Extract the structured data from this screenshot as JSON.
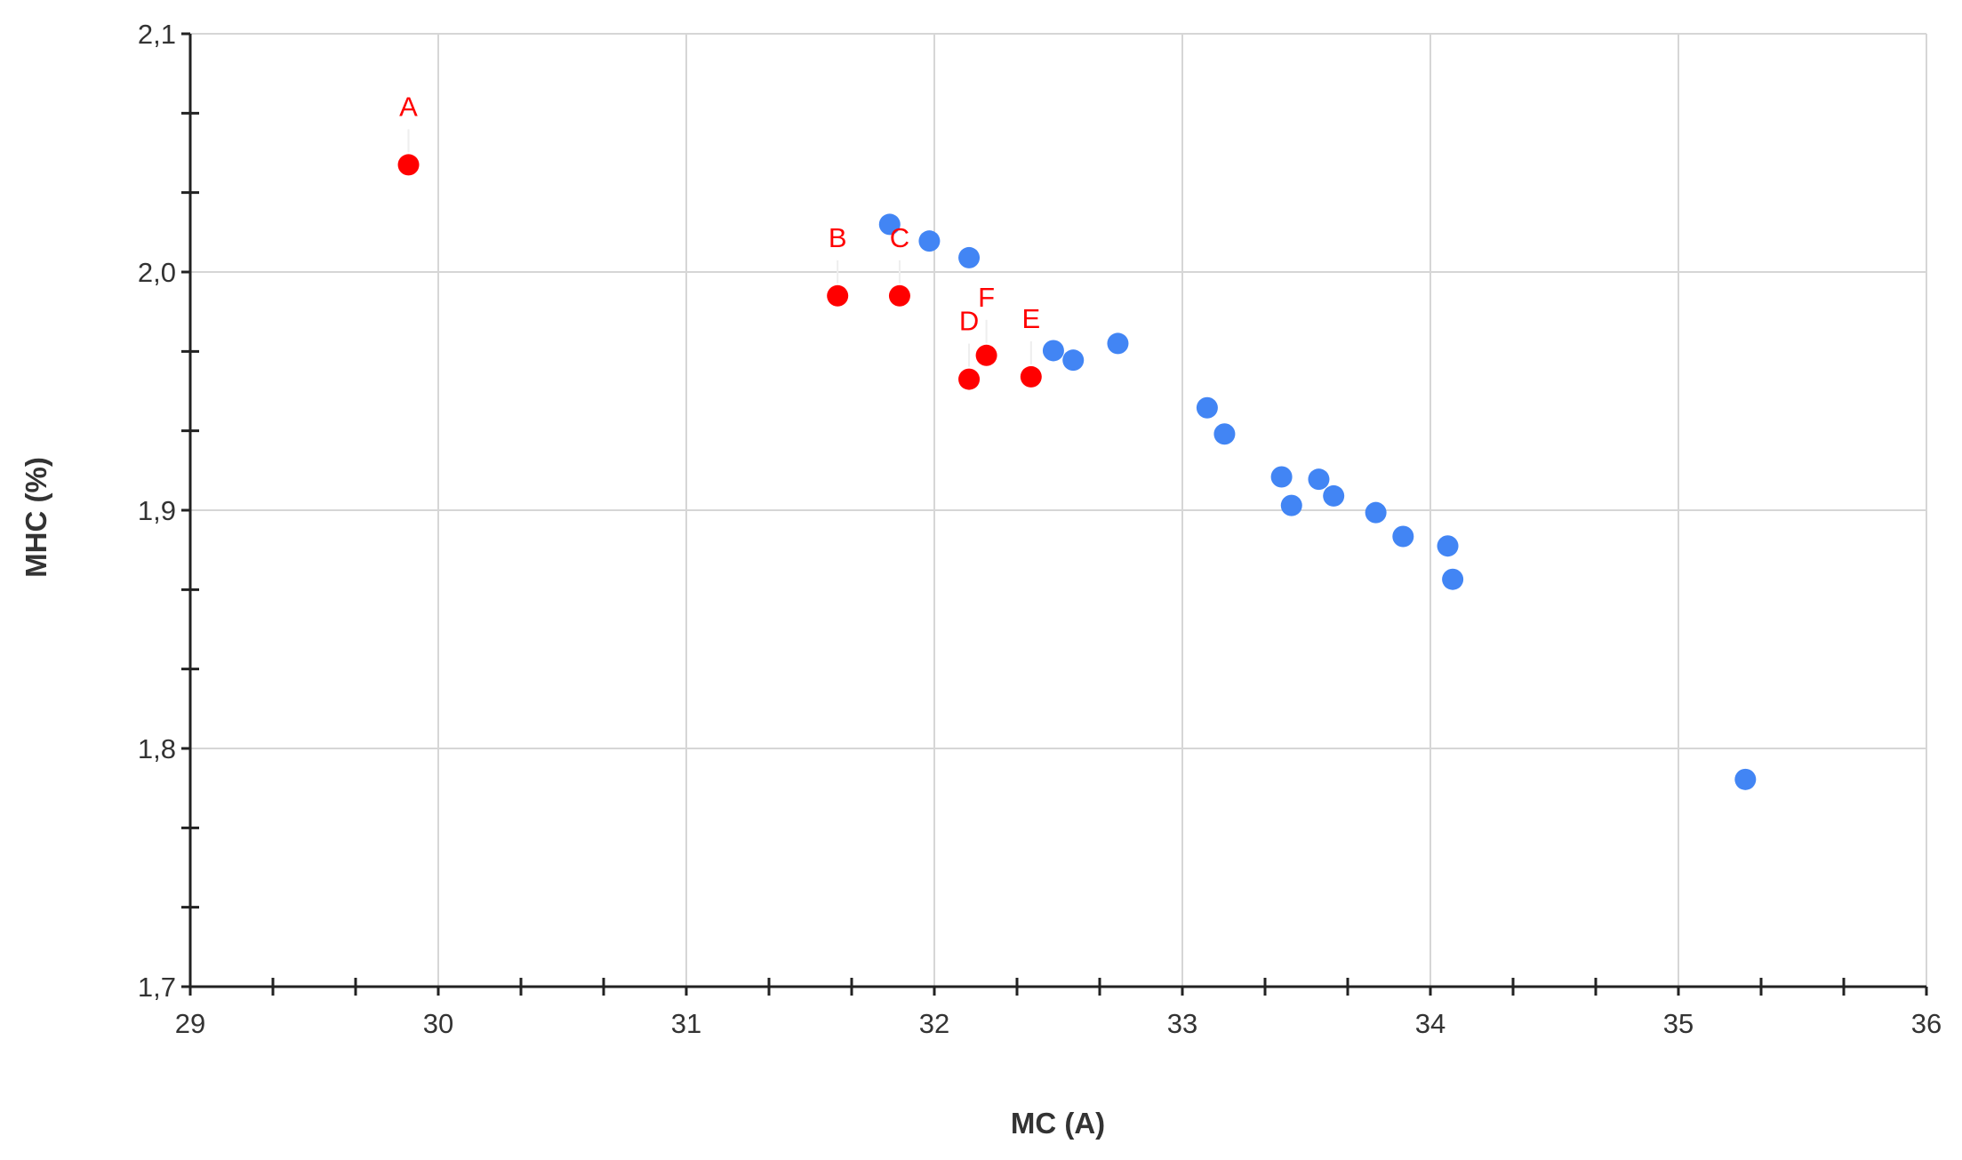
{
  "chart_data": {
    "type": "scatter",
    "title": "",
    "xlabel": "MC (A)",
    "ylabel": "MHC (%)",
    "xlim": [
      29,
      36
    ],
    "ylim": [
      1.7,
      2.1
    ],
    "x_ticks": [
      29,
      30,
      31,
      32,
      33,
      34,
      35,
      36
    ],
    "x_tick_labels": [
      "29",
      "30",
      "31",
      "32",
      "33",
      "34",
      "35",
      "36"
    ],
    "y_ticks": [
      1.7,
      1.8,
      1.9,
      2.0,
      2.1
    ],
    "y_tick_labels": [
      "1,7",
      "1,8",
      "1,9",
      "2,0",
      "2,1"
    ],
    "grid": true,
    "legend": "none",
    "series": [
      {
        "color": "#4285f4",
        "points": [
          {
            "x": 31.82,
            "y": 2.02
          },
          {
            "x": 31.98,
            "y": 2.013
          },
          {
            "x": 32.14,
            "y": 2.006
          },
          {
            "x": 32.48,
            "y": 1.967
          },
          {
            "x": 32.56,
            "y": 1.963
          },
          {
            "x": 32.74,
            "y": 1.97
          },
          {
            "x": 33.1,
            "y": 1.943
          },
          {
            "x": 33.17,
            "y": 1.932
          },
          {
            "x": 33.4,
            "y": 1.914
          },
          {
            "x": 33.44,
            "y": 1.902
          },
          {
            "x": 33.55,
            "y": 1.913
          },
          {
            "x": 33.61,
            "y": 1.906
          },
          {
            "x": 33.78,
            "y": 1.899
          },
          {
            "x": 33.89,
            "y": 1.889
          },
          {
            "x": 34.07,
            "y": 1.885
          },
          {
            "x": 34.09,
            "y": 1.871
          },
          {
            "x": 35.27,
            "y": 1.787
          }
        ]
      },
      {
        "color": "#ff0000",
        "points": [
          {
            "x": 29.88,
            "y": 2.045,
            "label": "A"
          },
          {
            "x": 31.61,
            "y": 1.99,
            "label": "B"
          },
          {
            "x": 31.86,
            "y": 1.99,
            "label": "C"
          },
          {
            "x": 32.14,
            "y": 1.955,
            "label": "D"
          },
          {
            "x": 32.39,
            "y": 1.956,
            "label": "E"
          },
          {
            "x": 32.21,
            "y": 1.965,
            "label": "F"
          }
        ]
      }
    ]
  }
}
